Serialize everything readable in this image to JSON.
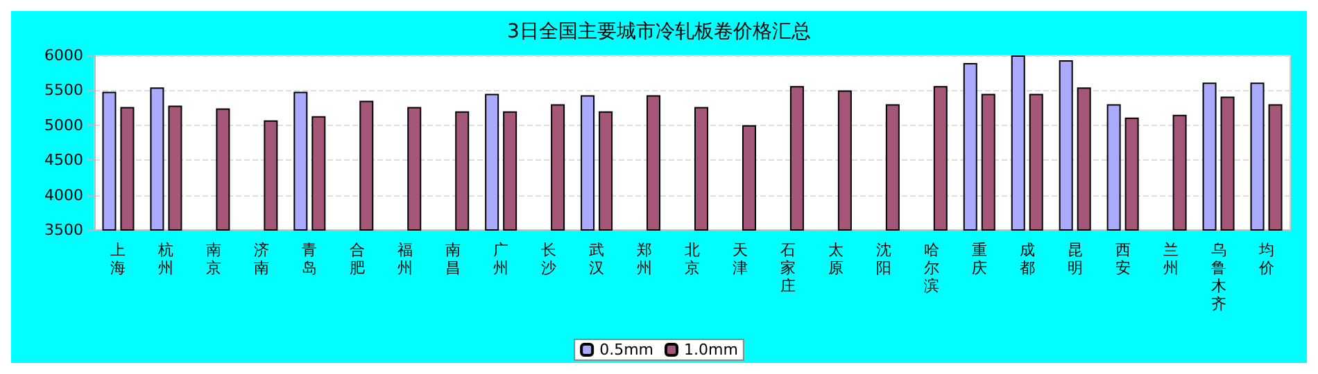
{
  "chart_data": {
    "type": "bar",
    "title": "3日全国主要城市冷轧板卷价格汇总",
    "categories": [
      "上海",
      "杭州",
      "南京",
      "济南",
      "青岛",
      "合肥",
      "福州",
      "南昌",
      "广州",
      "长沙",
      "武汉",
      "郑州",
      "北京",
      "天津",
      "石家庄",
      "太原",
      "沈阳",
      "哈尔滨",
      "重庆",
      "成都",
      "昆明",
      "西安",
      "兰州",
      "乌鲁木齐",
      "均价"
    ],
    "series": [
      {
        "name": "0.5mm",
        "color": "#aaaaff",
        "values": [
          5480,
          5540,
          null,
          null,
          5480,
          null,
          null,
          null,
          5450,
          null,
          5430,
          null,
          null,
          null,
          null,
          null,
          null,
          null,
          5890,
          6000,
          5930,
          5300,
          null,
          5610,
          5610
        ]
      },
      {
        "name": "1.0mm",
        "color": "#a5577a",
        "values": [
          5260,
          5280,
          5240,
          5070,
          5130,
          5350,
          5260,
          5200,
          5200,
          5300,
          5200,
          5430,
          5260,
          5000,
          5560,
          5500,
          5300,
          5560,
          5450,
          5450,
          5540,
          5110,
          5150,
          5410,
          5300
        ]
      }
    ],
    "ylim": [
      3500,
      6000
    ],
    "yticks": [
      3500,
      4000,
      4500,
      5000,
      5500,
      6000
    ],
    "grid": "y",
    "legend": "bottom"
  }
}
